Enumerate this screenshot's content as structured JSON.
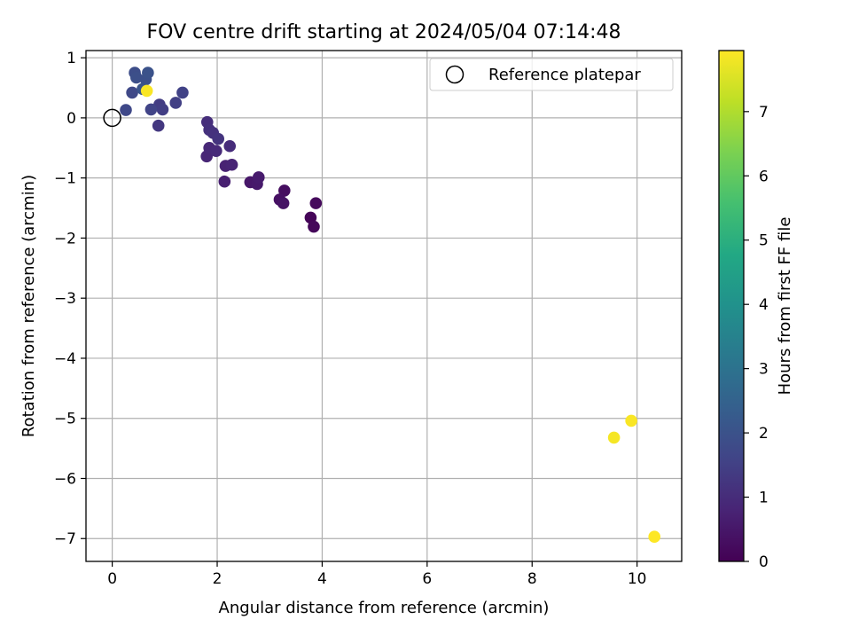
{
  "chart_data": {
    "type": "scatter",
    "title": "FOV centre drift starting at 2024/05/04 07:14:48",
    "xlabel": "Angular distance from reference (arcmin)",
    "ylabel": "Rotation from reference (arcmin)",
    "xlim": [
      -0.5,
      10.85
    ],
    "ylim": [
      -7.38,
      1.12
    ],
    "x_ticks": [
      0,
      2,
      4,
      6,
      8,
      10
    ],
    "y_ticks": [
      1,
      0,
      -1,
      -2,
      -3,
      -4,
      -5,
      -6,
      -7
    ],
    "x_tick_labels": [
      "0",
      "2",
      "4",
      "6",
      "8",
      "10"
    ],
    "y_tick_labels": [
      "1",
      "0",
      "−1",
      "−2",
      "−3",
      "−4",
      "−5",
      "−6",
      "−7"
    ],
    "grid": true,
    "colormap": "viridis",
    "colorbar": {
      "label": "Hours from first FF file",
      "range": [
        0,
        7.95
      ],
      "ticks": [
        0,
        1,
        2,
        3,
        4,
        5,
        6,
        7
      ],
      "tick_labels": [
        "0",
        "1",
        "2",
        "3",
        "4",
        "5",
        "6",
        "7"
      ]
    },
    "legend": {
      "position": "top-right",
      "label": "Reference platepar"
    },
    "reference_point": {
      "x": 0,
      "y": 0
    },
    "points": [
      {
        "x": 3.78,
        "y": -1.66,
        "hours": 0.1
      },
      {
        "x": 3.84,
        "y": -1.81,
        "hours": 0.15
      },
      {
        "x": 3.88,
        "y": -1.42,
        "hours": 0.2
      },
      {
        "x": 3.28,
        "y": -1.21,
        "hours": 0.3
      },
      {
        "x": 3.19,
        "y": -1.36,
        "hours": 0.35
      },
      {
        "x": 3.26,
        "y": -1.42,
        "hours": 0.4
      },
      {
        "x": 2.63,
        "y": -1.07,
        "hours": 0.5
      },
      {
        "x": 2.76,
        "y": -1.1,
        "hours": 0.55
      },
      {
        "x": 2.79,
        "y": -0.99,
        "hours": 0.6
      },
      {
        "x": 2.14,
        "y": -1.06,
        "hours": 0.7
      },
      {
        "x": 2.16,
        "y": -0.8,
        "hours": 0.75
      },
      {
        "x": 2.28,
        "y": -0.78,
        "hours": 0.8
      },
      {
        "x": 1.8,
        "y": -0.64,
        "hours": 0.85
      },
      {
        "x": 1.85,
        "y": -0.5,
        "hours": 0.9
      },
      {
        "x": 1.98,
        "y": -0.55,
        "hours": 0.95
      },
      {
        "x": 2.24,
        "y": -0.47,
        "hours": 1.0
      },
      {
        "x": 1.81,
        "y": -0.07,
        "hours": 1.05
      },
      {
        "x": 1.85,
        "y": -0.2,
        "hours": 1.1
      },
      {
        "x": 1.92,
        "y": -0.25,
        "hours": 1.15
      },
      {
        "x": 2.02,
        "y": -0.35,
        "hours": 1.2
      },
      {
        "x": 0.88,
        "y": -0.13,
        "hours": 1.3
      },
      {
        "x": 0.9,
        "y": 0.22,
        "hours": 1.4
      },
      {
        "x": 0.96,
        "y": 0.14,
        "hours": 1.45
      },
      {
        "x": 1.21,
        "y": 0.25,
        "hours": 1.5
      },
      {
        "x": 1.34,
        "y": 0.42,
        "hours": 1.55
      },
      {
        "x": 0.74,
        "y": 0.14,
        "hours": 1.6
      },
      {
        "x": 0.26,
        "y": 0.13,
        "hours": 1.7
      },
      {
        "x": 0.38,
        "y": 0.42,
        "hours": 1.75
      },
      {
        "x": 0.43,
        "y": 0.75,
        "hours": 1.85
      },
      {
        "x": 0.46,
        "y": 0.67,
        "hours": 1.9
      },
      {
        "x": 0.64,
        "y": 0.64,
        "hours": 1.95
      },
      {
        "x": 0.68,
        "y": 0.75,
        "hours": 2.0
      },
      {
        "x": 0.58,
        "y": 0.48,
        "hours": 2.05
      },
      {
        "x": 0.66,
        "y": 0.45,
        "hours": 7.9
      },
      {
        "x": 9.56,
        "y": -5.32,
        "hours": 7.85
      },
      {
        "x": 9.89,
        "y": -5.04,
        "hours": 7.9
      },
      {
        "x": 10.33,
        "y": -6.97,
        "hours": 7.95
      }
    ]
  }
}
